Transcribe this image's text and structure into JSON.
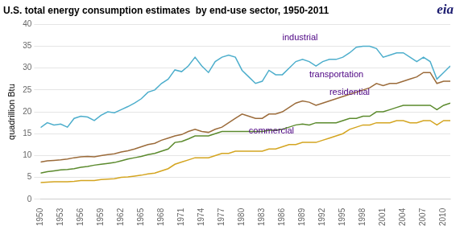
{
  "chart_data": {
    "type": "line",
    "title": "U.S. total energy consumption estimates  by end-use sector, 1950-2011",
    "y_label": "quadrillion Btu",
    "x": [
      1950,
      1951,
      1952,
      1953,
      1954,
      1955,
      1956,
      1957,
      1958,
      1959,
      1960,
      1961,
      1962,
      1963,
      1964,
      1965,
      1966,
      1967,
      1968,
      1969,
      1970,
      1971,
      1972,
      1973,
      1974,
      1975,
      1976,
      1977,
      1978,
      1979,
      1980,
      1981,
      1982,
      1983,
      1984,
      1985,
      1986,
      1987,
      1988,
      1989,
      1990,
      1991,
      1992,
      1993,
      1994,
      1995,
      1996,
      1997,
      1998,
      1999,
      2000,
      2001,
      2002,
      2003,
      2004,
      2005,
      2006,
      2007,
      2008,
      2009,
      2010,
      2011
    ],
    "series": [
      {
        "name": "industrial",
        "color": "#4DAECC",
        "values": [
          16.4,
          17.5,
          17.0,
          17.2,
          16.5,
          18.5,
          19.0,
          18.8,
          18.0,
          19.2,
          20.0,
          19.8,
          20.5,
          21.2,
          22.0,
          23.0,
          24.5,
          25.0,
          26.5,
          27.5,
          29.6,
          29.2,
          30.5,
          32.5,
          30.5,
          29.0,
          31.5,
          32.5,
          33.0,
          32.5,
          29.5,
          28.0,
          26.5,
          27.0,
          29.5,
          28.5,
          28.5,
          30.0,
          31.5,
          32.0,
          31.5,
          30.5,
          31.5,
          32.0,
          32.0,
          32.5,
          33.5,
          34.8,
          35.0,
          35.0,
          34.5,
          32.5,
          33.0,
          33.5,
          33.5,
          32.5,
          31.5,
          32.5,
          31.5,
          27.5,
          29.0,
          30.5
        ]
      },
      {
        "name": "transportation",
        "color": "#9B6B3A",
        "values": [
          8.5,
          8.8,
          8.9,
          9.0,
          9.2,
          9.5,
          9.7,
          9.8,
          9.7,
          10.0,
          10.2,
          10.4,
          10.8,
          11.1,
          11.5,
          12.0,
          12.5,
          12.8,
          13.5,
          14.0,
          14.5,
          14.8,
          15.5,
          16.0,
          15.5,
          15.3,
          16.0,
          16.5,
          17.5,
          18.5,
          19.5,
          19.0,
          18.5,
          18.5,
          19.5,
          19.5,
          20.0,
          21.0,
          22.0,
          22.5,
          22.2,
          21.5,
          22.0,
          22.5,
          23.0,
          23.5,
          24.0,
          24.5,
          25.0,
          25.5,
          26.5,
          26.0,
          26.5,
          26.5,
          27.0,
          27.5,
          28.0,
          29.0,
          29.0,
          26.5,
          27.0,
          27.0
        ]
      },
      {
        "name": "residential",
        "color": "#5B8A2D",
        "values": [
          6.0,
          6.3,
          6.5,
          6.7,
          6.8,
          7.0,
          7.3,
          7.5,
          7.8,
          8.0,
          8.2,
          8.4,
          8.8,
          9.2,
          9.5,
          9.8,
          10.2,
          10.5,
          11.0,
          11.5,
          13.0,
          13.2,
          13.8,
          14.5,
          14.5,
          14.5,
          15.0,
          15.5,
          15.5,
          15.5,
          15.5,
          15.5,
          15.5,
          15.5,
          15.8,
          15.8,
          16.0,
          16.5,
          17.0,
          17.2,
          17.0,
          17.5,
          17.5,
          17.5,
          17.5,
          18.0,
          18.5,
          18.5,
          19.0,
          19.0,
          20.0,
          20.0,
          20.5,
          21.0,
          21.5,
          21.5,
          21.5,
          21.5,
          21.5,
          20.5,
          21.5,
          22.0
        ]
      },
      {
        "name": "commercial",
        "color": "#D4A520",
        "values": [
          3.8,
          3.9,
          4.0,
          4.0,
          4.0,
          4.1,
          4.3,
          4.3,
          4.3,
          4.5,
          4.6,
          4.7,
          5.0,
          5.1,
          5.3,
          5.5,
          5.8,
          6.0,
          6.5,
          7.0,
          8.0,
          8.5,
          9.0,
          9.5,
          9.5,
          9.5,
          10.0,
          10.5,
          10.5,
          11.0,
          11.0,
          11.0,
          11.0,
          11.0,
          11.5,
          11.5,
          12.0,
          12.5,
          12.5,
          13.0,
          13.0,
          13.0,
          13.5,
          14.0,
          14.5,
          15.0,
          16.0,
          16.5,
          17.0,
          17.0,
          17.5,
          17.5,
          17.5,
          18.0,
          18.0,
          17.5,
          17.5,
          18.0,
          18.0,
          17.0,
          18.0,
          18.0
        ]
      }
    ],
    "xlim": [
      1950,
      2011
    ],
    "xticks": [
      1950,
      1953,
      1956,
      1959,
      1962,
      1965,
      1968,
      1971,
      1974,
      1977,
      1980,
      1983,
      1986,
      1989,
      1992,
      1995,
      1998,
      2001,
      2004,
      2007,
      2010
    ],
    "ylim": [
      0,
      40
    ],
    "yticks": [
      0,
      5,
      10,
      15,
      20,
      25,
      30,
      35,
      40
    ],
    "grid": "y",
    "legend": false,
    "annotations": [
      {
        "text": "industrial",
        "x": 1986,
        "y": 36.0,
        "color": "#4B0082"
      },
      {
        "text": "transportation",
        "x": 1990,
        "y": 27.5,
        "color": "#4B0082"
      },
      {
        "text": "residential",
        "x": 1993,
        "y": 23.5,
        "color": "#4B0082"
      },
      {
        "text": "commercial",
        "x": 1981,
        "y": 14.5,
        "color": "#4B0082"
      },
      {
        "text": "eia",
        "color": "#1a1a6e"
      }
    ]
  }
}
